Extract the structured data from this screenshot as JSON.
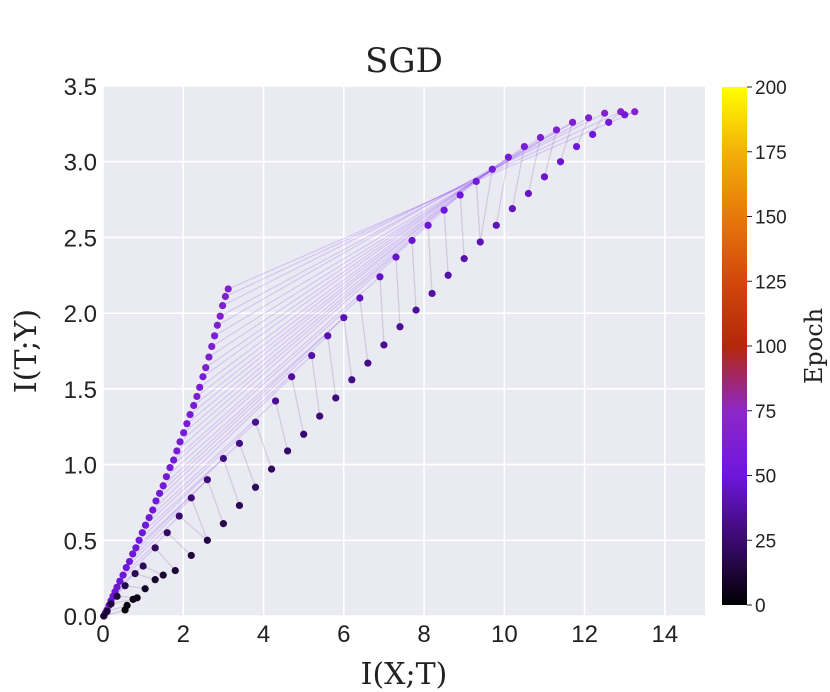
{
  "chart_data": {
    "type": "scatter",
    "title": "SGD",
    "xlabel": "I(X;T)",
    "ylabel": "I(T;Y)",
    "xlim": [
      0,
      15
    ],
    "ylim": [
      0,
      3.5
    ],
    "xticks": [
      "0",
      "2",
      "4",
      "6",
      "8",
      "10",
      "12",
      "14"
    ],
    "yticks": [
      "0.0",
      "0.5",
      "1.0",
      "1.5",
      "2.0",
      "2.5",
      "3.0",
      "3.5"
    ],
    "grid": true,
    "background": "#eaeaf2",
    "colorbar": {
      "label": "Epoch",
      "colormap": "gnuplot",
      "range": [
        0,
        200
      ],
      "ticks": [
        "0",
        "25",
        "50",
        "75",
        "100",
        "125",
        "150",
        "175",
        "200"
      ]
    },
    "series": [
      {
        "points": [
          [
            0.02,
            0.0
          ],
          [
            0.06,
            0.02
          ],
          [
            0.1,
            0.04
          ],
          [
            0.15,
            0.07
          ],
          [
            0.2,
            0.1
          ],
          [
            0.25,
            0.13
          ],
          [
            0.3,
            0.16
          ],
          [
            0.35,
            0.19
          ],
          [
            0.42,
            0.23
          ],
          [
            0.5,
            0.27
          ],
          [
            0.58,
            0.32
          ],
          [
            0.66,
            0.36
          ],
          [
            0.74,
            0.41
          ],
          [
            0.82,
            0.45
          ],
          [
            0.9,
            0.5
          ],
          [
            0.98,
            0.55
          ],
          [
            1.06,
            0.6
          ],
          [
            1.15,
            0.65
          ],
          [
            1.24,
            0.7
          ],
          [
            1.32,
            0.76
          ],
          [
            1.41,
            0.81
          ],
          [
            1.5,
            0.86
          ],
          [
            1.58,
            0.92
          ],
          [
            1.67,
            0.98
          ],
          [
            1.76,
            1.03
          ],
          [
            1.84,
            1.09
          ],
          [
            1.92,
            1.15
          ],
          [
            2.01,
            1.21
          ],
          [
            2.09,
            1.27
          ],
          [
            2.17,
            1.33
          ],
          [
            2.26,
            1.39
          ],
          [
            2.34,
            1.45
          ],
          [
            2.41,
            1.51
          ],
          [
            2.49,
            1.58
          ],
          [
            2.56,
            1.64
          ],
          [
            2.64,
            1.71
          ],
          [
            2.71,
            1.78
          ],
          [
            2.78,
            1.85
          ],
          [
            2.85,
            1.92
          ],
          [
            2.92,
            1.98
          ],
          [
            2.98,
            2.05
          ],
          [
            3.05,
            2.11
          ],
          [
            3.12,
            2.16
          ]
        ],
        "epoch_range": [
          45,
          65
        ]
      },
      {
        "points": [
          [
            0.02,
            0.0
          ],
          [
            0.1,
            0.03
          ],
          [
            0.2,
            0.08
          ],
          [
            0.35,
            0.13
          ],
          [
            0.55,
            0.2
          ],
          [
            0.8,
            0.28
          ],
          [
            1.0,
            0.33
          ],
          [
            1.3,
            0.45
          ],
          [
            1.6,
            0.55
          ],
          [
            1.9,
            0.66
          ],
          [
            2.2,
            0.78
          ],
          [
            2.6,
            0.9
          ],
          [
            3.0,
            1.04
          ],
          [
            3.4,
            1.14
          ],
          [
            3.8,
            1.28
          ],
          [
            4.3,
            1.42
          ],
          [
            4.7,
            1.58
          ],
          [
            5.2,
            1.72
          ],
          [
            5.6,
            1.85
          ],
          [
            6.0,
            1.97
          ],
          [
            6.4,
            2.1
          ],
          [
            6.9,
            2.24
          ],
          [
            7.3,
            2.37
          ],
          [
            7.7,
            2.48
          ],
          [
            8.1,
            2.58
          ],
          [
            8.5,
            2.68
          ],
          [
            8.9,
            2.78
          ],
          [
            9.3,
            2.87
          ],
          [
            9.7,
            2.95
          ],
          [
            10.1,
            3.03
          ],
          [
            10.5,
            3.1
          ],
          [
            10.9,
            3.16
          ],
          [
            11.3,
            3.21
          ],
          [
            11.7,
            3.26
          ],
          [
            12.1,
            3.29
          ],
          [
            12.5,
            3.32
          ],
          [
            12.9,
            3.33
          ],
          [
            13.25,
            3.33
          ]
        ],
        "epoch_range": [
          10,
          70
        ]
      },
      {
        "points": [
          [
            0.55,
            0.04
          ],
          [
            0.6,
            0.07
          ],
          [
            0.75,
            0.11
          ],
          [
            0.85,
            0.12
          ],
          [
            1.05,
            0.18
          ],
          [
            1.3,
            0.24
          ],
          [
            1.5,
            0.27
          ],
          [
            1.8,
            0.3
          ],
          [
            2.2,
            0.4
          ],
          [
            2.6,
            0.5
          ],
          [
            3.0,
            0.61
          ],
          [
            3.4,
            0.73
          ],
          [
            3.8,
            0.85
          ],
          [
            4.2,
            0.97
          ],
          [
            4.6,
            1.09
          ],
          [
            5.0,
            1.2
          ],
          [
            5.4,
            1.32
          ],
          [
            5.8,
            1.44
          ],
          [
            6.2,
            1.56
          ],
          [
            6.6,
            1.67
          ],
          [
            7.0,
            1.79
          ],
          [
            7.4,
            1.91
          ],
          [
            7.8,
            2.02
          ],
          [
            8.2,
            2.13
          ],
          [
            8.6,
            2.25
          ],
          [
            9.0,
            2.36
          ],
          [
            9.4,
            2.47
          ],
          [
            9.8,
            2.58
          ],
          [
            10.2,
            2.69
          ],
          [
            10.6,
            2.79
          ],
          [
            11.0,
            2.9
          ],
          [
            11.4,
            3.0
          ],
          [
            11.8,
            3.1
          ],
          [
            12.2,
            3.18
          ],
          [
            12.6,
            3.26
          ],
          [
            13.0,
            3.31
          ]
        ],
        "epoch_range": [
          2,
          55
        ]
      }
    ]
  }
}
